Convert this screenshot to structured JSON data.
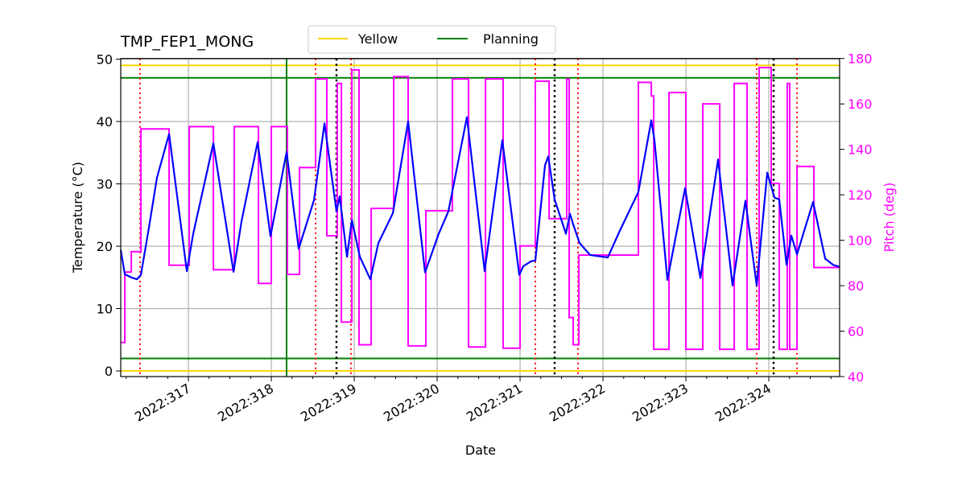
{
  "chart_data": {
    "type": "line",
    "title": "TMP_FEP1_MONG",
    "xlabel": "Date",
    "ylabel": "Temperature ($^\\circ$C)",
    "ylabel_display": "Temperature (°C)",
    "y2label": "Pitch (deg)",
    "xlim": [
      316.184,
      324.854
    ],
    "ylim": [
      -0.9,
      50.1
    ],
    "y2lim": [
      40,
      180
    ],
    "grid": true,
    "legend_placement": "top-center",
    "x_ticks": [
      317,
      318,
      319,
      320,
      321,
      322,
      323,
      324
    ],
    "x_tick_labels": [
      "2022:317",
      "2022:318",
      "2022:319",
      "2022:320",
      "2022:321",
      "2022:322",
      "2022:323",
      "2022:324"
    ],
    "y_ticks": [
      0,
      10,
      20,
      30,
      40,
      50
    ],
    "y_tick_labels": [
      "0",
      "10",
      "20",
      "30",
      "40",
      "50"
    ],
    "y2_ticks": [
      40,
      60,
      80,
      100,
      120,
      140,
      160,
      180
    ],
    "y2_tick_labels": [
      "40",
      "60",
      "80",
      "100",
      "120",
      "140",
      "160",
      "180"
    ],
    "limit_lines": [
      {
        "name": "Yellow",
        "values": [
          49,
          0
        ],
        "color": "#ffd700",
        "in_legend": true
      },
      {
        "name": "Planning",
        "values": [
          47,
          2
        ],
        "color": "#008000",
        "in_legend": true
      }
    ],
    "legend": [
      "Yellow",
      "Planning"
    ],
    "vertical_lines": {
      "green_solid": [
        318.184
      ],
      "red_dotted": [
        316.417,
        318.534,
        318.961,
        321.184,
        321.699,
        323.854,
        324.34
      ],
      "black_dotted": [
        318.786,
        321.417,
        324.058
      ]
    },
    "series": [
      {
        "axis": "left",
        "color": "#0000ff",
        "x": [
          316.184,
          316.233,
          316.311,
          316.379,
          316.427,
          316.524,
          316.621,
          316.767,
          316.981,
          317.058,
          317.301,
          317.544,
          317.641,
          317.835,
          317.99,
          318.184,
          318.33,
          318.515,
          318.641,
          318.786,
          318.825,
          318.913,
          318.971,
          319.068,
          319.194,
          319.291,
          319.466,
          319.65,
          319.854,
          320.019,
          320.136,
          320.359,
          320.573,
          320.786,
          320.99,
          321.039,
          321.136,
          321.184,
          321.301,
          321.34,
          321.417,
          321.553,
          321.602,
          321.641,
          321.718,
          321.845,
          322.058,
          322.204,
          322.427,
          322.583,
          322.621,
          322.777,
          322.99,
          323.175,
          323.388,
          323.563,
          323.718,
          323.854,
          323.981,
          324.068,
          324.126,
          324.214,
          324.272,
          324.34,
          324.534,
          324.68,
          324.777,
          324.854
        ],
        "y": [
          19.4,
          15.5,
          15.0,
          14.7,
          15.4,
          23,
          31,
          38,
          16,
          22,
          36.5,
          15.9,
          24,
          36.7,
          21.6,
          35.1,
          19.6,
          27.4,
          39.7,
          25.6,
          28,
          18.3,
          24.2,
          18.3,
          14.7,
          20.5,
          25.3,
          40,
          15.8,
          22,
          25.6,
          40.7,
          16,
          37,
          15.4,
          16.8,
          17.6,
          17.7,
          33,
          34.4,
          27.5,
          22,
          25.2,
          23.5,
          20.5,
          18.6,
          18.2,
          22.5,
          28.7,
          40.2,
          37,
          14.6,
          29.3,
          14.9,
          33.9,
          13.7,
          27.3,
          13.7,
          31.8,
          27.8,
          27.5,
          17,
          21.7,
          18.7,
          27.1,
          18,
          17,
          16.7
        ]
      },
      {
        "axis": "right",
        "color": "#ff00ff",
        "step": "post",
        "x": [
          316.184,
          316.233,
          316.311,
          316.427,
          316.767,
          317.01,
          317.301,
          317.553,
          317.845,
          318.0,
          318.194,
          318.34,
          318.534,
          318.67,
          318.796,
          318.845,
          318.971,
          319.058,
          319.204,
          319.476,
          319.65,
          319.864,
          320.184,
          320.379,
          320.583,
          320.796,
          321.0,
          321.184,
          321.35,
          321.563,
          321.592,
          321.641,
          321.709,
          322.427,
          322.583,
          322.612,
          322.796,
          323.0,
          323.204,
          323.408,
          323.583,
          323.738,
          323.883,
          324.029,
          324.126,
          324.223,
          324.252,
          324.34,
          324.544,
          324.854
        ],
        "y": [
          55,
          86,
          95,
          149,
          89,
          150,
          87,
          150,
          81,
          150,
          85,
          132,
          171,
          102,
          169,
          64,
          175,
          54,
          114,
          172,
          53.5,
          113,
          171,
          53,
          171,
          52.5,
          97.5,
          170,
          109.5,
          171,
          66,
          54,
          93.5,
          169.5,
          163.5,
          52,
          165,
          52,
          160,
          52,
          169,
          52,
          176,
          125,
          52,
          169,
          52,
          132.5,
          88,
          88
        ]
      }
    ]
  }
}
